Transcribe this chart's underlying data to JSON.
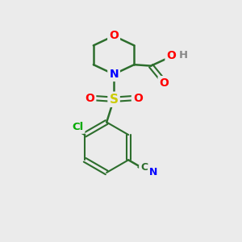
{
  "bg_color": "#ebebeb",
  "atom_colors": {
    "C": "#2d6e2d",
    "N": "#0000ff",
    "O": "#ff0000",
    "S": "#cccc00",
    "Cl": "#00aa00",
    "H": "#888888"
  },
  "bond_color": "#2d6e2d"
}
